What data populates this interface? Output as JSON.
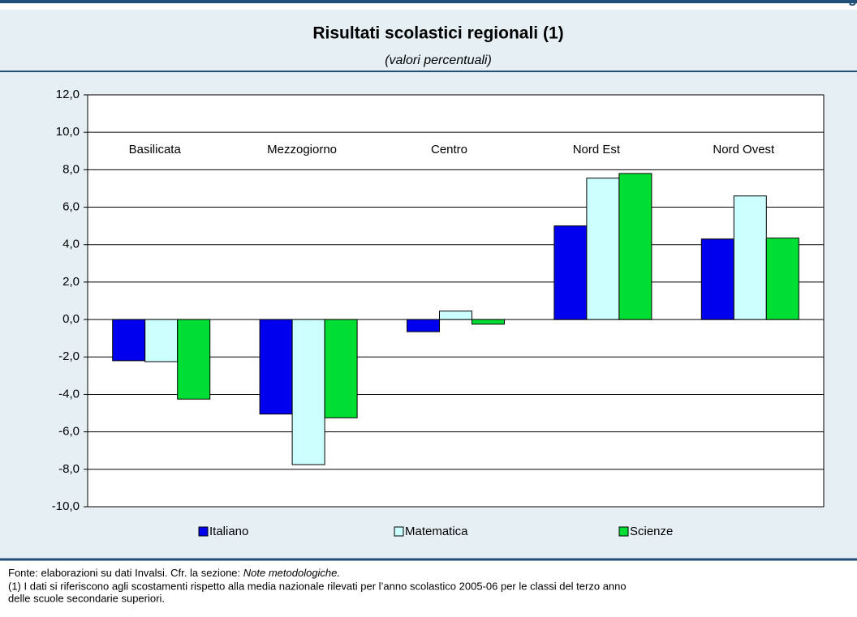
{
  "header": {
    "label": "g"
  },
  "chart_data": {
    "type": "bar",
    "title": "Risultati scolastici regionali (1)",
    "subtitle": "(valori percentuali)",
    "categories": [
      "Basilicata",
      "Mezzogiorno",
      "Centro",
      "Nord Est",
      "Nord Ovest"
    ],
    "series": [
      {
        "name": "Italiano",
        "color": "#0000ee",
        "values": [
          -2.2,
          -5.05,
          -0.65,
          5.0,
          4.3
        ]
      },
      {
        "name": "Matematica",
        "color": "#ccffff",
        "values": [
          -2.25,
          -7.75,
          0.45,
          7.55,
          6.6
        ]
      },
      {
        "name": "Scienze",
        "color": "#00dd33",
        "values": [
          -4.25,
          -5.25,
          -0.25,
          7.8,
          4.35
        ]
      }
    ],
    "ylim": [
      -10,
      12
    ],
    "yticks": [
      {
        "value": -10,
        "label": "-10,0"
      },
      {
        "value": -8,
        "label": "-8,0"
      },
      {
        "value": -6,
        "label": "-6,0"
      },
      {
        "value": -4,
        "label": "-4,0"
      },
      {
        "value": -2,
        "label": "-2,0"
      },
      {
        "value": 0,
        "label": "0,0"
      },
      {
        "value": 2,
        "label": "2,0"
      },
      {
        "value": 4,
        "label": "4,0"
      },
      {
        "value": 6,
        "label": "6,0"
      },
      {
        "value": 8,
        "label": "8,0"
      },
      {
        "value": 10,
        "label": "10,0"
      },
      {
        "value": 12,
        "label": "12,0"
      }
    ],
    "grid": true,
    "legend": "bottom"
  },
  "footnotes": {
    "source_prefix": "Fonte: elaborazioni su dati Invalsi. Cfr. la sezione: ",
    "source_italic": "Note metodologiche.",
    "note_lines": [
      "(1) I dati si riferiscono agli scostamenti rispetto alla media nazionale rilevati per l’anno scolastico 2005-06 per le classi del terzo anno",
      "delle scuole secondarie superiori."
    ]
  }
}
